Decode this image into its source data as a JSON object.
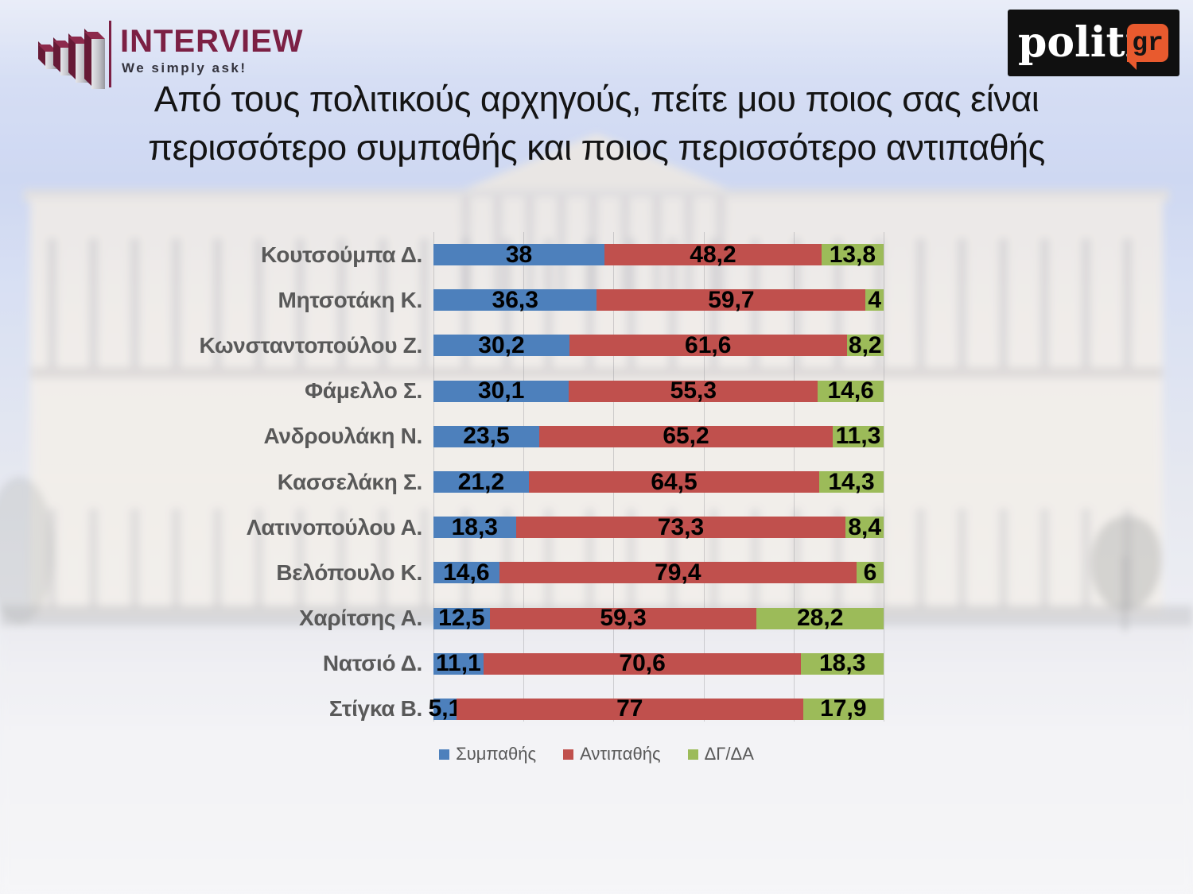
{
  "header": {
    "interview_logo": {
      "name": "INTERVIEW",
      "tagline": "We simply ask!",
      "brand_color": "#7C2044"
    },
    "politic_logo": {
      "name": "politic",
      "suffix": "gr",
      "bg_color": "#101010",
      "accent_color": "#E85A2E"
    }
  },
  "title": {
    "line1": "Από τους πολιτικούς αρχηγούς, πείτε μου ποιος σας είναι",
    "line2": "περισσότερο συμπαθής και ποιος περισσότερο αντιπαθής"
  },
  "chart_data": {
    "type": "bar",
    "variant": "horizontal-stacked",
    "title": "Από τους πολιτικούς αρχηγούς, πείτε μου ποιος σας είναι περισσότερο συμπαθής και ποιος περισσότερο αντιπαθής",
    "categories": [
      "Κουτσούμπα Δ.",
      "Μητσοτάκη Κ.",
      "Κωνσταντοπούλου Ζ.",
      "Φάμελλο Σ.",
      "Ανδρουλάκη Ν.",
      "Κασσελάκη Σ.",
      "Λατινοπούλου Α.",
      "Βελόπουλο Κ.",
      "Χαρίτσης Α.",
      "Νατσιό Δ.",
      "Στίγκα Β."
    ],
    "series": [
      {
        "name": "Συμπαθής",
        "color": "#4D80BC",
        "values": [
          38,
          36.3,
          30.2,
          30.1,
          23.5,
          21.2,
          18.3,
          14.6,
          12.5,
          11.1,
          5.1
        ],
        "labels": [
          "38",
          "36,3",
          "30,2",
          "30,1",
          "23,5",
          "21,2",
          "18,3",
          "14,6",
          "12,5",
          "11,1",
          "5,1"
        ]
      },
      {
        "name": "Αντιπαθής",
        "color": "#C0504D",
        "values": [
          48.2,
          59.7,
          61.6,
          55.3,
          65.2,
          64.5,
          73.3,
          79.4,
          59.3,
          70.6,
          77
        ],
        "labels": [
          "48,2",
          "59,7",
          "61,6",
          "55,3",
          "65,2",
          "64,5",
          "73,3",
          "79,4",
          "59,3",
          "70,6",
          "77"
        ]
      },
      {
        "name": "ΔΓ/ΔΑ",
        "color": "#9CBB59",
        "values": [
          13.8,
          4,
          8.2,
          14.6,
          11.3,
          14.3,
          8.4,
          6,
          28.2,
          18.3,
          17.9
        ],
        "labels": [
          "13,8",
          "4",
          "8,2",
          "14,6",
          "11,3",
          "14,3",
          "8,4",
          "6",
          "28,2",
          "18,3",
          "17,9"
        ]
      }
    ],
    "xlim": [
      0,
      100
    ],
    "gridlines": {
      "interval": 20,
      "on": true
    },
    "legend": {
      "position": "bottom",
      "items": [
        "Συμπαθής",
        "Αντιπαθής",
        "ΔΓ/ΔΑ"
      ]
    },
    "value_label_color": "#000000",
    "category_label_color": "#595959"
  }
}
